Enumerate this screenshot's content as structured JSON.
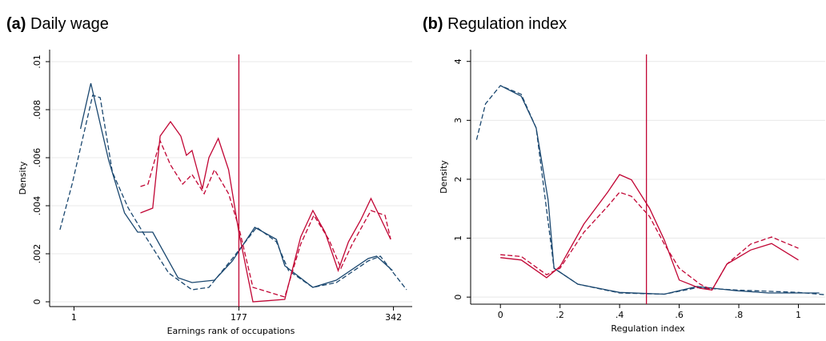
{
  "chart_data": [
    {
      "type": "line",
      "label": "(a)",
      "title": "Daily wage",
      "xlabel": "Earnings rank of occupations",
      "ylabel": "Density",
      "xlim": [
        -25,
        362
      ],
      "ylim": [
        -0.0002,
        0.0105
      ],
      "xticks": [
        1,
        177,
        342
      ],
      "yticks": [
        0,
        {
          "value": 0.002,
          "label": ".002"
        },
        {
          "value": 0.004,
          "label": ".004"
        },
        {
          "value": 0.006,
          "label": ".006"
        },
        {
          "value": 0.008,
          "label": ".008"
        },
        {
          "value": 0.01,
          "label": ".01"
        }
      ],
      "grid": true,
      "vline": 177,
      "vline_color": "#c10534",
      "series": [
        {
          "color": "#1a476f",
          "dash": false,
          "x": [
            8,
            19,
            38,
            55,
            69,
            85,
            112,
            127,
            151,
            170,
            194,
            217,
            226,
            256,
            281,
            315,
            324,
            341
          ],
          "values": [
            0.0072,
            0.0091,
            0.0059,
            0.0037,
            0.0029,
            0.0029,
            0.001,
            0.0008,
            0.0009,
            0.0017,
            0.0031,
            0.0026,
            0.0015,
            0.0006,
            0.0009,
            0.0018,
            0.0019,
            0.0013
          ]
        },
        {
          "color": "#1a476f",
          "dash": true,
          "x": [
            -14,
            -1,
            21,
            29,
            42,
            59,
            76,
            102,
            127,
            145,
            170,
            196,
            217,
            230,
            256,
            281,
            315,
            328,
            356
          ],
          "values": [
            0.003,
            0.0049,
            0.0086,
            0.0085,
            0.0054,
            0.0039,
            0.0028,
            0.0012,
            0.0005,
            0.0006,
            0.0018,
            0.0031,
            0.0025,
            0.0013,
            0.0006,
            0.0008,
            0.0017,
            0.0019,
            0.0005
          ]
        },
        {
          "color": "#c10534",
          "dash": false,
          "x": [
            72,
            85,
            93,
            104,
            115,
            121,
            127,
            138,
            145,
            155,
            166,
            177,
            192,
            226,
            243,
            256,
            269,
            283,
            294,
            307,
            318,
            328,
            339
          ],
          "values": [
            0.0037,
            0.0039,
            0.0069,
            0.0075,
            0.0069,
            0.0061,
            0.0063,
            0.0047,
            0.006,
            0.0068,
            0.0055,
            0.0029,
            0,
            0.0001,
            0.0027,
            0.0038,
            0.0029,
            0.0013,
            0.0025,
            0.0034,
            0.0043,
            0.0035,
            0.0026
          ]
        },
        {
          "color": "#c10534",
          "dash": true,
          "x": [
            72,
            80,
            93,
            104,
            117,
            127,
            140,
            151,
            166,
            177,
            192,
            226,
            243,
            257,
            273,
            286,
            298,
            318,
            333,
            339
          ],
          "values": [
            0.0048,
            0.0049,
            0.0067,
            0.0057,
            0.0049,
            0.0053,
            0.0045,
            0.0055,
            0.0045,
            0.0031,
            0.0006,
            0.0002,
            0.0024,
            0.0036,
            0.0026,
            0.0014,
            0.0024,
            0.0038,
            0.0036,
            0.0026
          ]
        }
      ]
    },
    {
      "type": "line",
      "label": "(b)",
      "title": "Regulation index",
      "xlabel": "Regulation index",
      "ylabel": "Density",
      "xlim": [
        -0.1,
        1.09
      ],
      "ylim": [
        -0.12,
        4.2
      ],
      "xticks": [
        0,
        {
          "value": 0.2,
          "label": ".2"
        },
        {
          "value": 0.4,
          "label": ".4"
        },
        {
          "value": 0.6,
          "label": ".6"
        },
        {
          "value": 0.8,
          "label": ".8"
        },
        1
      ],
      "yticks": [
        0,
        1,
        2,
        3,
        4
      ],
      "grid": true,
      "vline": 0.49,
      "vline_color": "#c10534",
      "series": [
        {
          "color": "#1a476f",
          "dash": false,
          "x": [
            0,
            0.07,
            0.12,
            0.16,
            0.18,
            0.26,
            0.4,
            0.55,
            0.66,
            0.79,
            0.9,
            1.07
          ],
          "values": [
            3.59,
            3.41,
            2.87,
            1.65,
            0.49,
            0.22,
            0.08,
            0.05,
            0.18,
            0.11,
            0.07,
            0.07
          ]
        },
        {
          "color": "#1a476f",
          "dash": true,
          "x": [
            -0.08,
            -0.05,
            0,
            0.07,
            0.12,
            0.18,
            0.26,
            0.4,
            0.55,
            0.66,
            0.79,
            1.0,
            1.09
          ],
          "values": [
            2.67,
            3.28,
            3.59,
            3.44,
            2.87,
            0.49,
            0.22,
            0.07,
            0.05,
            0.16,
            0.12,
            0.08,
            0.04
          ]
        },
        {
          "color": "#c10534",
          "dash": false,
          "x": [
            0,
            0.07,
            0.155,
            0.2,
            0.28,
            0.36,
            0.4,
            0.44,
            0.5,
            0.55,
            0.6,
            0.67,
            0.71,
            0.76,
            0.84,
            0.91,
            1.0
          ],
          "values": [
            0.67,
            0.63,
            0.33,
            0.52,
            1.24,
            1.78,
            2.08,
            1.99,
            1.51,
            0.97,
            0.29,
            0.15,
            0.12,
            0.56,
            0.8,
            0.91,
            0.63
          ]
        },
        {
          "color": "#c10534",
          "dash": true,
          "x": [
            0,
            0.07,
            0.155,
            0.2,
            0.28,
            0.36,
            0.4,
            0.44,
            0.5,
            0.55,
            0.6,
            0.67,
            0.71,
            0.76,
            0.84,
            0.91,
            1.0
          ],
          "values": [
            0.72,
            0.69,
            0.38,
            0.49,
            1.1,
            1.54,
            1.78,
            1.71,
            1.37,
            0.9,
            0.49,
            0.22,
            0.12,
            0.56,
            0.9,
            1.02,
            0.83
          ]
        }
      ]
    }
  ]
}
